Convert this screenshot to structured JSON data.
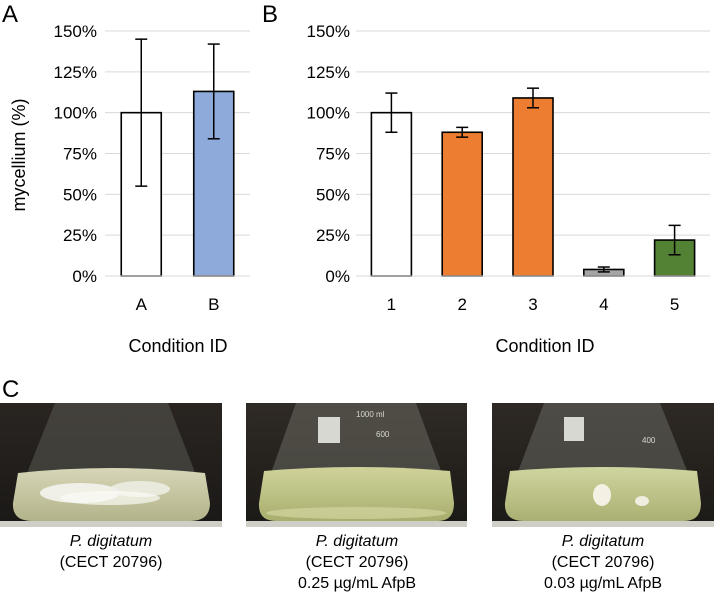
{
  "panels": {
    "a": "A",
    "b": "B",
    "c": "C"
  },
  "chart_data": [
    {
      "type": "bar",
      "panel": "A",
      "categories": [
        "A",
        "B"
      ],
      "values": [
        100,
        113
      ],
      "errors": [
        45,
        29
      ],
      "colors": [
        "#ffffff",
        "#8eaadb"
      ],
      "ylabel": "mycellium (%)",
      "xlabel": "Condition ID",
      "ylim": [
        0,
        150
      ],
      "yticks": [
        0,
        25,
        50,
        75,
        100,
        125,
        150
      ],
      "tick_suffix": "%",
      "grid": true
    },
    {
      "type": "bar",
      "panel": "B",
      "categories": [
        "1",
        "2",
        "3",
        "4",
        "5"
      ],
      "values": [
        100,
        88,
        109,
        4,
        22
      ],
      "errors": [
        12,
        3,
        6,
        1.5,
        9
      ],
      "colors": [
        "#ffffff",
        "#ed7d31",
        "#ed7d31",
        "#a5a5a5",
        "#548235"
      ],
      "ylabel": "",
      "xlabel": "Condition ID",
      "ylim": [
        0,
        150
      ],
      "yticks": [
        0,
        25,
        50,
        75,
        100,
        125,
        150
      ],
      "tick_suffix": "%",
      "grid": true
    }
  ],
  "photos": [
    {
      "species": "P. digitatum",
      "strain": "(CECT 20796)",
      "treatment": ""
    },
    {
      "species": "P. digitatum",
      "strain": "(CECT 20796)",
      "treatment": "0.25 µg/mL AfpB"
    },
    {
      "species": "P. digitatum",
      "strain": "(CECT 20796)",
      "treatment": "0.03 µg/mL AfpB"
    }
  ],
  "photo_labels": [
    "1000 ml",
    "600",
    "400"
  ]
}
